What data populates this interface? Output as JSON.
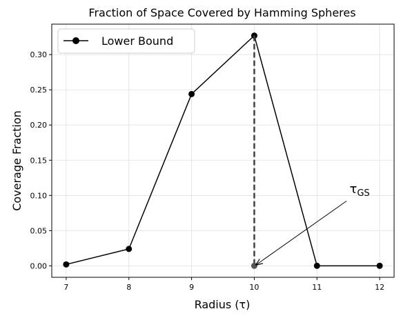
{
  "chart_data": {
    "type": "line",
    "title": "Fraction of Space Covered by Hamming Spheres",
    "xlabel": "Radius (τ)",
    "ylabel": "Coverage Fraction",
    "x": [
      7,
      8,
      9,
      10,
      11,
      12
    ],
    "series": [
      {
        "name": "Lower Bound",
        "values": [
          0.002,
          0.024,
          0.244,
          0.327,
          0.0,
          0.0
        ],
        "color": "#000000",
        "marker": "circle"
      }
    ],
    "xlim": [
      6.77,
      12.23
    ],
    "ylim": [
      -0.0163,
      0.3433
    ],
    "xticks": [
      "7",
      "8",
      "9",
      "10",
      "11",
      "12"
    ],
    "yticks": [
      "0.00",
      "0.05",
      "0.10",
      "0.15",
      "0.20",
      "0.25",
      "0.30"
    ],
    "grid": true,
    "legend_position": "top-left",
    "annotation": {
      "text": "τ",
      "subscript": "GS",
      "point_x": 10,
      "point_y": 0.0,
      "vline_color": "#404040",
      "highlight_marker_color": "#555555",
      "text_x": 11.52,
      "text_y": 0.103,
      "arrow_tail_x": 11.47,
      "arrow_tail_y": 0.092
    }
  }
}
